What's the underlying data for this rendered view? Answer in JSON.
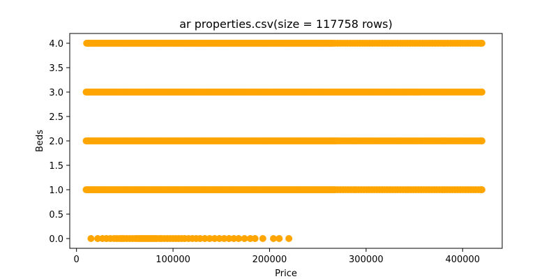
{
  "chart_data": {
    "type": "scatter",
    "title": "ar properties.csv(size = 117758 rows)",
    "xlabel": "Price",
    "ylabel": "Beds",
    "xlim": [
      -7000,
      441000
    ],
    "ylim": [
      -0.2,
      4.2
    ],
    "x_ticks": [
      0,
      100000,
      200000,
      300000,
      400000
    ],
    "x_tick_labels": [
      "0",
      "100000",
      "200000",
      "300000",
      "400000"
    ],
    "y_ticks": [
      0.0,
      0.5,
      1.0,
      1.5,
      2.0,
      2.5,
      3.0,
      3.5,
      4.0
    ],
    "y_tick_labels": [
      "0.0",
      "0.5",
      "1.0",
      "1.5",
      "2.0",
      "2.5",
      "3.0",
      "3.5",
      "4.0"
    ],
    "grid": false,
    "marker_color": "#ffa500",
    "rows": [
      {
        "beds": 4.0,
        "solid_ranges": [
          [
            10500,
            265000
          ]
        ],
        "sparse_from": 265000,
        "sparse_to": 420000,
        "sparse_step": 2600
      },
      {
        "beds": 3.0,
        "solid_ranges": [
          [
            10000,
            355000
          ]
        ],
        "sparse_from": 355000,
        "sparse_to": 420000,
        "sparse_step": 1800
      },
      {
        "beds": 2.0,
        "solid_ranges": [
          [
            10000,
            268000
          ]
        ],
        "sparse_from": 268000,
        "sparse_to": 420000,
        "sparse_step": 2200
      },
      {
        "beds": 1.0,
        "solid_ranges": [
          [
            10000,
            268000
          ]
        ],
        "sparse_from": 268000,
        "sparse_to": 420000,
        "sparse_step": 2700
      },
      {
        "beds": 0.0,
        "points": [
          15000,
          22000,
          27000,
          31000,
          35000,
          39000,
          42000,
          45000,
          47000,
          49000,
          52000,
          55000,
          58000,
          61000,
          63000,
          65000,
          67000,
          69000,
          71000,
          73000,
          75000,
          77000,
          79000,
          81000,
          83000,
          86000,
          88000,
          91000,
          94000,
          97000,
          100000,
          103000,
          106000,
          109000,
          112000,
          116000,
          120000,
          124000,
          128000,
          133000,
          138000,
          143000,
          148000,
          153000,
          158000,
          163000,
          168000,
          174000,
          180000,
          185000,
          193000,
          204000,
          210000,
          220000
        ]
      }
    ]
  }
}
